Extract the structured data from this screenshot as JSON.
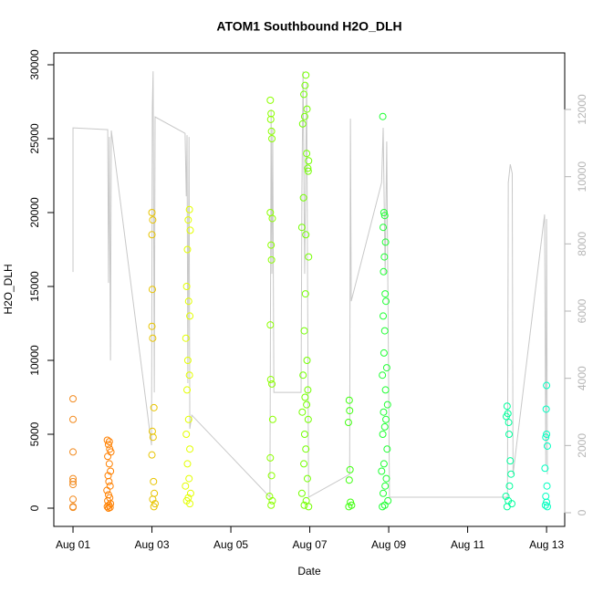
{
  "chart_data": {
    "type": "scatter",
    "title": "ATOM1 Southbound H2O_DLH",
    "xlabel": "Date",
    "ylabel": "H2O_DLH",
    "xlim": [
      0.514,
      13.46
    ],
    "xticks": [
      {
        "value": 1,
        "label": "Aug 01"
      },
      {
        "value": 3,
        "label": "Aug 03"
      },
      {
        "value": 5,
        "label": "Aug 05"
      },
      {
        "value": 7,
        "label": "Aug 07"
      },
      {
        "value": 9,
        "label": "Aug 09"
      },
      {
        "value": 11,
        "label": "Aug 11"
      },
      {
        "value": 13,
        "label": "Aug 13"
      }
    ],
    "ylim": [
      -1235,
      30802
    ],
    "yticks": [
      0,
      5000,
      10000,
      15000,
      20000,
      25000,
      30000
    ],
    "y2lim": [
      -407,
      13683
    ],
    "y2ticks": [
      0,
      2000,
      4000,
      6000,
      8000,
      10000,
      12000
    ],
    "series": [
      {
        "color": "#f28a1e",
        "x": [
          1,
          1,
          1,
          1,
          1,
          1,
          1,
          1,
          1
        ],
        "values": [
          7400,
          6000,
          3800,
          2000,
          1800,
          1600,
          600,
          100,
          50
        ]
      },
      {
        "color": "#ff8000",
        "x": [
          1.87,
          1.9,
          1.93,
          1.88,
          1.92,
          1.95,
          1.89,
          1.91,
          1.94,
          1.86,
          1.9,
          1.93,
          1.88,
          1.95,
          1.91,
          1.87,
          1.94,
          1.9,
          1.92,
          1.96
        ],
        "values": [
          4600,
          4300,
          4000,
          3500,
          3000,
          2500,
          2200,
          1800,
          1500,
          1200,
          900,
          700,
          500,
          300,
          200,
          100,
          50,
          0,
          4500,
          3800
        ]
      },
      {
        "color": "#e8c400",
        "x": [
          3.0,
          3.02,
          3.0,
          3.01,
          3.0,
          3.02,
          3.05,
          3.01,
          3.03,
          3.0,
          3.04,
          3.06,
          3.02,
          3.08,
          3.05
        ],
        "values": [
          20000,
          19500,
          18500,
          14800,
          12300,
          11500,
          6800,
          5200,
          4800,
          3600,
          1800,
          1000,
          600,
          300,
          100
        ]
      },
      {
        "color": "#e4ff00",
        "x": [
          3.95,
          3.92,
          3.97,
          3.9,
          3.88,
          3.93,
          3.96,
          3.86,
          3.91,
          3.95,
          3.89,
          3.93,
          3.87,
          3.96,
          3.9,
          3.94,
          3.85,
          3.98,
          3.92,
          3.88,
          3.96
        ],
        "values": [
          20200,
          19500,
          18800,
          17500,
          15000,
          14000,
          13000,
          11500,
          10000,
          9000,
          8000,
          6000,
          5000,
          4000,
          3000,
          2000,
          1500,
          1000,
          700,
          500,
          300
        ]
      },
      {
        "color": "#8cff00",
        "x": [
          6.0,
          6.02,
          6.01,
          6.03,
          6.04,
          6.0,
          6.05,
          6.02,
          6.03,
          6.0,
          6.01,
          6.04,
          6.06,
          6.0,
          6.03,
          5.98,
          6.05,
          6.02
        ],
        "values": [
          27600,
          26700,
          26300,
          25500,
          25000,
          20000,
          19600,
          17800,
          16800,
          12400,
          8700,
          8400,
          6000,
          3400,
          2200,
          800,
          500,
          200
        ]
      },
      {
        "color": "#74ff00",
        "x": [
          6.9,
          6.88,
          6.85,
          6.93,
          6.87,
          6.82,
          6.92,
          6.97,
          6.95,
          6.96,
          6.84,
          6.8,
          6.9,
          6.97,
          6.89,
          6.86,
          6.93,
          6.83,
          6.95,
          6.88,
          6.92,
          6.81,
          6.96,
          6.87,
          6.9,
          6.85,
          6.94,
          6.8,
          6.91,
          6.86,
          6.97
        ],
        "values": [
          29300,
          28600,
          28000,
          27000,
          26500,
          26000,
          24000,
          23500,
          23000,
          22800,
          21000,
          19000,
          18500,
          17000,
          14500,
          12000,
          10000,
          9000,
          8000,
          7500,
          7000,
          6500,
          6000,
          5000,
          4000,
          3000,
          2000,
          1000,
          500,
          200,
          100
        ]
      },
      {
        "color": "#40ff10",
        "x": [
          8.0,
          8.01,
          7.98,
          8.02,
          8.0,
          8.03,
          8.06,
          7.99
        ],
        "values": [
          7300,
          6600,
          5800,
          2600,
          1900,
          400,
          200,
          100
        ]
      },
      {
        "color": "#20ff34",
        "x": [
          8.85,
          8.88,
          8.9,
          8.86,
          8.92,
          8.89,
          8.87,
          8.91,
          8.93,
          8.86,
          8.9,
          8.88,
          8.95,
          8.84,
          8.92,
          8.97,
          8.87,
          8.93,
          8.9,
          8.85,
          8.96,
          8.88,
          8.82,
          8.94,
          8.91,
          8.86,
          8.98,
          8.9,
          8.84
        ],
        "values": [
          26500,
          20000,
          19800,
          19000,
          18000,
          17000,
          16000,
          14500,
          14000,
          13000,
          12000,
          10500,
          9500,
          9000,
          8000,
          7000,
          6500,
          6000,
          5500,
          5000,
          4000,
          3000,
          2500,
          2000,
          1500,
          1000,
          500,
          200,
          100
        ]
      },
      {
        "color": "#00ff9c",
        "x": [
          12.0,
          12.02,
          11.98,
          12.04,
          12.05,
          12.08,
          12.1,
          12.06,
          11.97,
          12.03,
          12.12,
          12.0
        ],
        "values": [
          6900,
          6400,
          6200,
          5800,
          5000,
          3200,
          2300,
          1500,
          800,
          500,
          300,
          100
        ]
      },
      {
        "color": "#00ffc0",
        "x": [
          13.0,
          12.99,
          13.0,
          12.98,
          13.02,
          12.96,
          13.01,
          12.98,
          13.0,
          12.97,
          13.02
        ],
        "values": [
          8300,
          6700,
          5000,
          4800,
          4200,
          2700,
          1500,
          800,
          400,
          200,
          100
        ]
      },
      {
        "type": "line",
        "axis": "y2",
        "color": "#c8c8c8",
        "x": [
          1.0,
          1.0,
          1.88,
          1.9,
          1.92,
          1.95,
          1.97,
          2.99,
          3.01,
          3.03,
          3.06,
          3.08,
          3.84,
          3.87,
          3.89,
          3.91,
          3.94,
          3.96,
          4.01,
          5.99,
          6.02,
          6.04,
          6.06,
          6.09,
          6.78,
          6.8,
          6.83,
          6.87,
          6.92,
          6.97,
          8.01,
          8.03,
          8.05,
          8.82,
          8.86,
          8.91,
          8.95,
          9.02,
          12.01,
          12.03,
          12.08,
          12.13,
          12.15,
          12.95,
          12.98,
          13.0,
          13.02
        ],
        "values": [
          7165,
          11453,
          11399,
          6839,
          11182,
          4532,
          11372,
          2008,
          12050,
          13136,
          3582,
          11779,
          11290,
          9418,
          11236,
          3854,
          11182,
          2497,
          2904,
          461,
          11996,
          7111,
          11453,
          3582,
          3582,
          9553,
          13136,
          7111,
          12810,
          461,
          1140,
          11724,
          6296,
          9825,
          11453,
          7111,
          11046,
          461,
          461,
          9825,
          10367,
          10096,
          1140,
          8875,
          1411,
          8739,
          1140
        ]
      }
    ]
  }
}
